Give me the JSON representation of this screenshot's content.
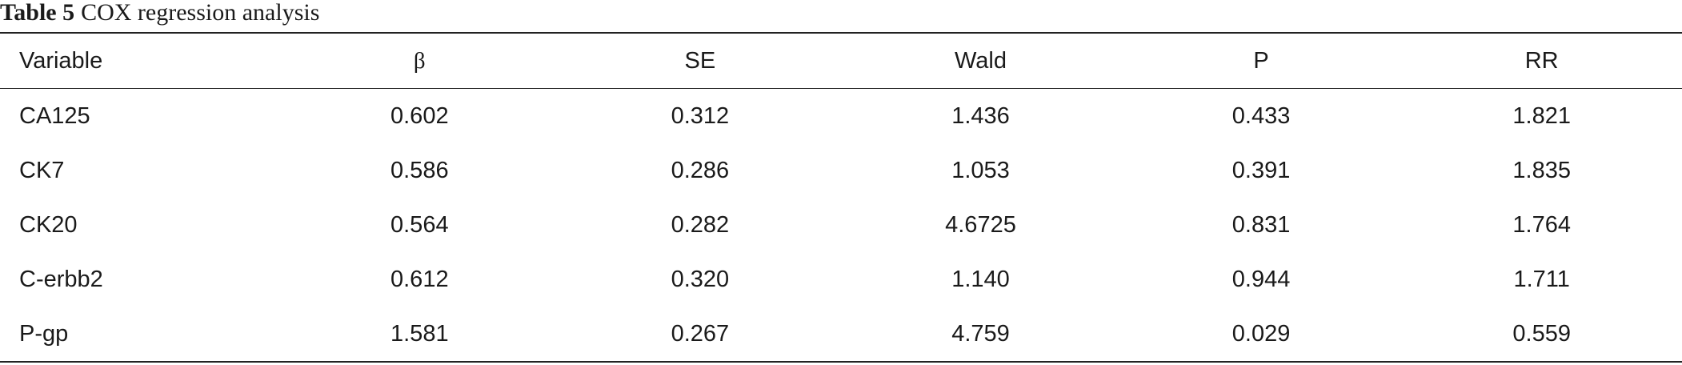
{
  "title": {
    "label": "Table 5",
    "text": "COX regression analysis"
  },
  "table": {
    "headers": [
      "Variable",
      "β",
      "SE",
      "Wald",
      "P",
      "RR"
    ],
    "rows": [
      [
        "CA125",
        "0.602",
        "0.312",
        "1.436",
        "0.433",
        "1.821"
      ],
      [
        "CK7",
        "0.586",
        "0.286",
        "1.053",
        "0.391",
        "1.835"
      ],
      [
        "CK20",
        "0.564",
        "0.282",
        "4.6725",
        "0.831",
        "1.764"
      ],
      [
        "C-erbb2",
        "0.612",
        "0.320",
        "1.140",
        "0.944",
        "1.711"
      ],
      [
        "P-gp",
        "1.581",
        "0.267",
        "4.759",
        "0.029",
        "0.559"
      ]
    ]
  }
}
